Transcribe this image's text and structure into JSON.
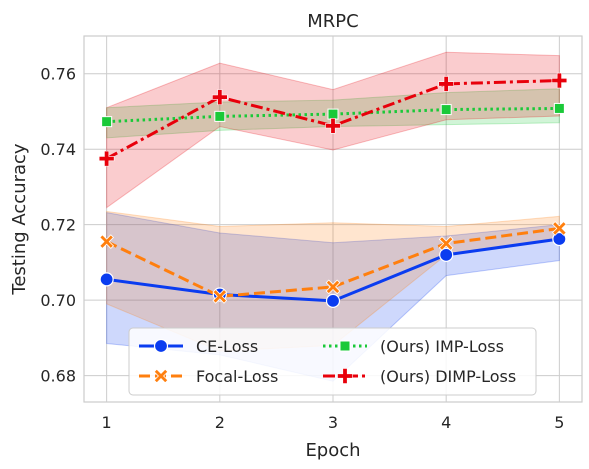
{
  "chart_data": {
    "type": "line",
    "title": "MRPC",
    "xlabel": "Epoch",
    "ylabel": "Testing Accuracy",
    "x": [
      1,
      2,
      3,
      4,
      5
    ],
    "x_tick_labels": [
      "1",
      "2",
      "3",
      "4",
      "5"
    ],
    "y_ticks": [
      0.68,
      0.7,
      0.72,
      0.74,
      0.76
    ],
    "y_tick_labels": [
      "0.68",
      "0.70",
      "0.72",
      "0.74",
      "0.76"
    ],
    "xlim": [
      0.8,
      5.2
    ],
    "ylim": [
      0.673,
      0.77
    ],
    "grid": true,
    "legend_placement": "bottom",
    "series": [
      {
        "name": "CE-Loss",
        "values": [
          0.7055,
          0.7015,
          0.6998,
          0.712,
          0.7162
        ],
        "lower": [
          0.6885,
          0.6855,
          0.6785,
          0.7065,
          0.7105
        ],
        "upper": [
          0.7232,
          0.7178,
          0.7152,
          0.717,
          0.72
        ],
        "color": "#0a3cf0",
        "marker": "circle",
        "dash": "solid"
      },
      {
        "name": "Focal-Loss",
        "values": [
          0.7155,
          0.701,
          0.7035,
          0.715,
          0.719
        ],
        "lower": [
          0.699,
          0.6865,
          0.688,
          0.712,
          0.716
        ],
        "upper": [
          0.7235,
          0.7195,
          0.7205,
          0.7195,
          0.7222
        ],
        "color": "#ff7f0e",
        "marker": "x",
        "dash": "dashed"
      },
      {
        "name": "(Ours) IMP-Loss",
        "values": [
          0.7473,
          0.7487,
          0.7493,
          0.7505,
          0.7508
        ],
        "lower": [
          0.743,
          0.745,
          0.746,
          0.7465,
          0.747
        ],
        "upper": [
          0.751,
          0.7525,
          0.753,
          0.755,
          0.756
        ],
        "color": "#1ac938",
        "marker": "square",
        "dash": "dotted"
      },
      {
        "name": "(Ours) DIMP-Loss",
        "values": [
          0.7375,
          0.7538,
          0.7462,
          0.7573,
          0.7582
        ],
        "lower": [
          0.7245,
          0.746,
          0.7398,
          0.7478,
          0.7488
        ],
        "upper": [
          0.751,
          0.7628,
          0.7558,
          0.7657,
          0.7648
        ],
        "color": "#e8000b",
        "marker": "plus",
        "dash": "dashdot"
      }
    ]
  }
}
